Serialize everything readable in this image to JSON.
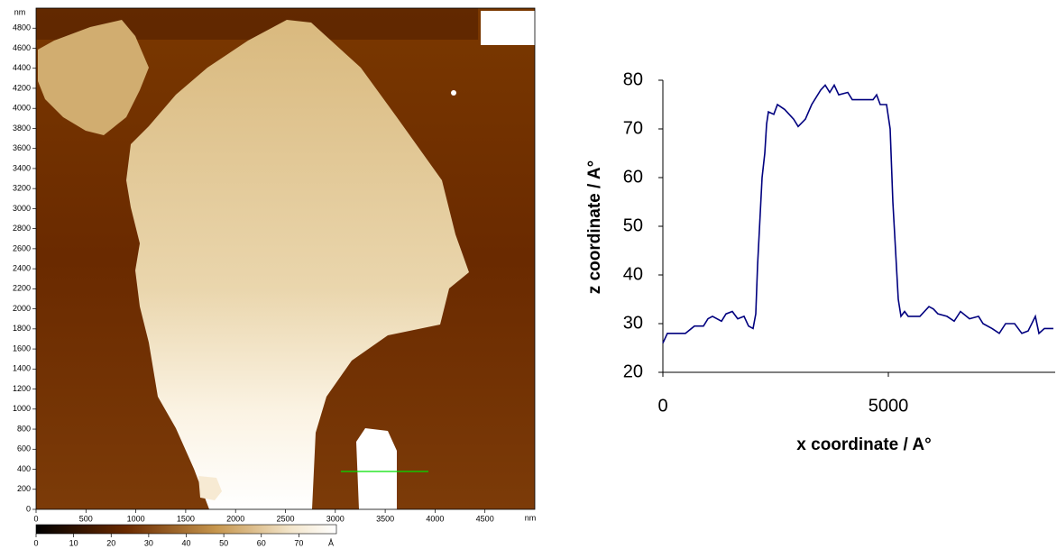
{
  "chart_data": [
    {
      "type": "image",
      "x_unit": "nm",
      "y_unit": "nm",
      "xlim": [
        0,
        5000
      ],
      "ylim": [
        0,
        5000
      ],
      "xticks": [
        0,
        500,
        1000,
        1500,
        2000,
        2500,
        3000,
        3500,
        4000,
        4500
      ],
      "yticks": [
        0,
        200,
        400,
        600,
        800,
        1000,
        1200,
        1400,
        1600,
        1800,
        2000,
        2200,
        2400,
        2600,
        2800,
        3000,
        3200,
        3400,
        3600,
        3800,
        4000,
        4200,
        4400,
        4600,
        4800
      ],
      "colorbar_lim": [
        0,
        80
      ],
      "colorbar_ticks": [
        0,
        10,
        20,
        30,
        40,
        50,
        60,
        70
      ],
      "colorbar_unit": "Å"
    },
    {
      "type": "line",
      "xlabel": "x coordinate / A°",
      "ylabel": "z coordinate / A°",
      "xlim": [
        0,
        8700
      ],
      "ylim": [
        20,
        80
      ],
      "xticks": [
        0,
        5000
      ],
      "yticks": [
        20,
        30,
        40,
        50,
        60,
        70,
        80
      ],
      "x": [
        0,
        100,
        500,
        700,
        900,
        1000,
        1100,
        1300,
        1400,
        1540,
        1660,
        1800,
        1900,
        2000,
        2060,
        2100,
        2200,
        2260,
        2300,
        2340,
        2460,
        2540,
        2700,
        2900,
        3000,
        3160,
        3300,
        3500,
        3600,
        3700,
        3800,
        3900,
        4100,
        4200,
        4660,
        4740,
        4820,
        4960,
        5040,
        5100,
        5160,
        5220,
        5280,
        5360,
        5440,
        5700,
        5900,
        6000,
        6100,
        6300,
        6460,
        6600,
        6800,
        7000,
        7100,
        7300,
        7460,
        7600,
        7800,
        7960,
        8100,
        8260,
        8340,
        8460,
        8660
      ],
      "series": [
        {
          "color": "#00007f",
          "values": [
            26,
            28,
            28,
            29.5,
            29.5,
            31,
            31.5,
            30.5,
            32,
            32.5,
            31,
            31.5,
            29.5,
            29,
            32,
            42,
            60,
            65,
            71,
            73.5,
            73,
            75,
            74,
            72,
            70.5,
            72,
            75,
            78,
            79,
            77.5,
            79,
            77,
            77.5,
            76,
            76,
            77,
            75,
            75,
            70,
            55,
            45,
            35,
            31.5,
            32.5,
            31.5,
            31.5,
            33.5,
            33,
            32,
            31.5,
            30.5,
            32.5,
            31,
            31.5,
            30,
            29,
            28,
            30,
            30,
            28,
            28.5,
            31.5,
            28,
            29,
            29
          ]
        }
      ]
    }
  ]
}
